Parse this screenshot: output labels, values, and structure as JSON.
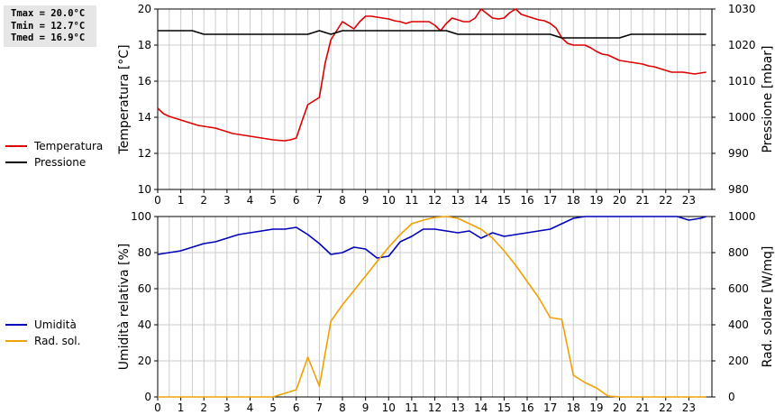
{
  "stats": {
    "tmax": "Tmax = 20.0°C",
    "tmin": "Tmin = 12.7°C",
    "tmed": "Tmed = 16.9°C"
  },
  "colors": {
    "temperatura": "#dd0000",
    "pressione": "#000000",
    "umidita": "#0000bb",
    "radiazione": "#f0a000",
    "grid": "#cccccc"
  },
  "chart_data": [
    {
      "type": "line",
      "ylabel": "Temperatura [°C]",
      "y2label": "Pressione [mbar]",
      "xlim": [
        0,
        24
      ],
      "ylim": [
        10,
        20
      ],
      "y2lim": [
        980,
        1030
      ],
      "xticks": [
        0,
        1,
        2,
        3,
        4,
        5,
        6,
        7,
        8,
        9,
        10,
        11,
        12,
        13,
        14,
        15,
        16,
        17,
        18,
        19,
        20,
        21,
        22,
        23
      ],
      "yticks": [
        10,
        12,
        14,
        16,
        18,
        20
      ],
      "y2ticks": [
        980,
        990,
        1000,
        1010,
        1020,
        1030
      ],
      "grid": true,
      "legend": "left",
      "series": [
        {
          "name": "Temperatura",
          "axis": "left",
          "color": "#dd0000",
          "x": [
            0,
            0.25,
            0.5,
            0.75,
            1,
            1.25,
            1.5,
            1.75,
            2,
            2.25,
            2.5,
            2.75,
            3,
            3.25,
            3.5,
            3.75,
            4,
            4.25,
            4.5,
            4.75,
            5,
            5.25,
            5.5,
            5.75,
            6,
            6.25,
            6.5,
            6.75,
            7,
            7.25,
            7.5,
            7.75,
            8,
            8.25,
            8.5,
            8.75,
            9,
            9.25,
            9.5,
            9.75,
            10,
            10.25,
            10.5,
            10.75,
            11,
            11.25,
            11.5,
            11.75,
            12,
            12.25,
            12.5,
            12.75,
            13,
            13.25,
            13.5,
            13.75,
            14,
            14.25,
            14.5,
            14.75,
            15,
            15.25,
            15.5,
            15.75,
            16,
            16.25,
            16.5,
            16.75,
            17,
            17.25,
            17.5,
            17.75,
            18,
            18.25,
            18.5,
            18.75,
            19,
            19.25,
            19.5,
            19.75,
            20,
            20.25,
            20.5,
            20.75,
            21,
            21.25,
            21.5,
            21.75,
            22,
            22.25,
            22.5,
            22.75,
            23,
            23.25,
            23.5,
            23.75
          ],
          "y": [
            14.5,
            14.2,
            14.05,
            13.95,
            13.85,
            13.75,
            13.65,
            13.55,
            13.5,
            13.45,
            13.4,
            13.3,
            13.2,
            13.1,
            13.05,
            13.0,
            12.95,
            12.9,
            12.85,
            12.8,
            12.75,
            12.72,
            12.7,
            12.75,
            12.85,
            13.8,
            14.7,
            14.9,
            15.1,
            17.0,
            18.3,
            18.8,
            19.3,
            19.1,
            18.9,
            19.3,
            19.6,
            19.6,
            19.55,
            19.5,
            19.45,
            19.35,
            19.3,
            19.2,
            19.3,
            19.3,
            19.3,
            19.3,
            19.1,
            18.8,
            19.2,
            19.5,
            19.4,
            19.3,
            19.3,
            19.5,
            20.0,
            19.75,
            19.5,
            19.45,
            19.5,
            19.8,
            20.0,
            19.7,
            19.6,
            19.5,
            19.4,
            19.35,
            19.2,
            18.95,
            18.4,
            18.1,
            18.0,
            18.0,
            18.0,
            17.85,
            17.65,
            17.5,
            17.45,
            17.3,
            17.15,
            17.1,
            17.05,
            17.0,
            16.95,
            16.85,
            16.8,
            16.7,
            16.6,
            16.5,
            16.5,
            16.5,
            16.45,
            16.4,
            16.45,
            16.5
          ]
        },
        {
          "name": "Pressione",
          "axis": "right",
          "color": "#000000",
          "x": [
            0,
            1,
            1.5,
            2,
            3,
            4,
            5,
            6,
            6.5,
            7,
            7.5,
            8,
            9,
            10,
            11,
            12,
            12.5,
            13,
            14,
            15,
            16,
            17,
            17.5,
            18,
            19,
            20,
            20.5,
            21,
            22,
            23,
            23.75
          ],
          "y": [
            1024,
            1024,
            1024,
            1023,
            1023,
            1023,
            1023,
            1023,
            1023,
            1024,
            1023,
            1024,
            1024,
            1024,
            1024,
            1024,
            1024,
            1023,
            1023,
            1023,
            1023,
            1023,
            1022,
            1022,
            1022,
            1022,
            1023,
            1023,
            1023,
            1023,
            1023
          ]
        }
      ]
    },
    {
      "type": "line",
      "ylabel": "Umidità relativa [%]",
      "y2label": "Rad. solare [W/mq]",
      "xlim": [
        0,
        24
      ],
      "ylim": [
        0,
        100
      ],
      "y2lim": [
        0,
        1000
      ],
      "xticks": [
        0,
        1,
        2,
        3,
        4,
        5,
        6,
        7,
        8,
        9,
        10,
        11,
        12,
        13,
        14,
        15,
        16,
        17,
        18,
        19,
        20,
        21,
        22,
        23
      ],
      "yticks": [
        0,
        20,
        40,
        60,
        80,
        100
      ],
      "y2ticks": [
        0,
        200,
        400,
        600,
        800,
        1000
      ],
      "grid": true,
      "legend": "left",
      "series": [
        {
          "name": "Umidità",
          "axis": "left",
          "color": "#0000bb",
          "x": [
            0,
            0.5,
            1,
            1.5,
            2,
            2.5,
            3,
            3.5,
            4,
            4.5,
            5,
            5.5,
            6,
            6.5,
            7,
            7.5,
            8,
            8.5,
            9,
            9.5,
            10,
            10.5,
            11,
            11.5,
            12,
            12.5,
            13,
            13.5,
            14,
            14.5,
            15,
            15.5,
            16,
            16.5,
            17,
            17.5,
            18,
            18.5,
            19,
            19.5,
            20,
            20.5,
            21,
            21.5,
            22,
            22.5,
            23,
            23.5,
            23.75
          ],
          "y": [
            79,
            80,
            81,
            83,
            85,
            86,
            88,
            90,
            91,
            92,
            93,
            93,
            94,
            90,
            85,
            79,
            80,
            83,
            82,
            77,
            78,
            86,
            89,
            93,
            93,
            92,
            91,
            92,
            88,
            91,
            89,
            90,
            91,
            92,
            93,
            96,
            99,
            100,
            100,
            100,
            100,
            100,
            100,
            100,
            100,
            100,
            98,
            99,
            100
          ]
        },
        {
          "name": "Rad. sol.",
          "axis": "right",
          "color": "#f0a000",
          "x": [
            0,
            1,
            2,
            3,
            4,
            5,
            5.5,
            6,
            6.5,
            7,
            7.5,
            8,
            8.5,
            9,
            9.5,
            10,
            10.5,
            11,
            11.5,
            12,
            12.5,
            13,
            13.5,
            14,
            14.5,
            15,
            15.5,
            16,
            16.5,
            17,
            17.5,
            18,
            18.5,
            19,
            19.5,
            20,
            21,
            22,
            23,
            23.75
          ],
          "y": [
            0,
            0,
            0,
            0,
            0,
            0,
            20,
            40,
            220,
            60,
            420,
            510,
            590,
            670,
            750,
            830,
            900,
            960,
            980,
            995,
            1000,
            990,
            960,
            930,
            880,
            810,
            730,
            640,
            550,
            440,
            430,
            120,
            80,
            50,
            5,
            0,
            0,
            0,
            0,
            0
          ]
        }
      ]
    }
  ]
}
